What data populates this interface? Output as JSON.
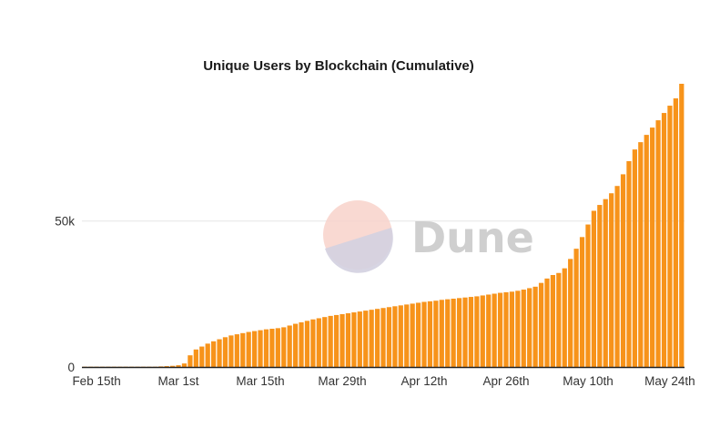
{
  "chart_data": {
    "type": "bar",
    "title": "Unique Users by Blockchain (Cumulative)",
    "xlabel": "",
    "ylabel": "",
    "x_start": "2022-02-13",
    "x_tick_labels": [
      "Feb 15th",
      "Mar 1st",
      "Mar 15th",
      "Mar 29th",
      "Apr 12th",
      "Apr 26th",
      "May 10th",
      "May 24th"
    ],
    "y_tick_labels": [
      "0",
      "50k"
    ],
    "y_tick_values": [
      0,
      50000
    ],
    "ylim": [
      0,
      97000
    ],
    "grid": "horizontal",
    "bar_color": "#f7931a",
    "values": [
      100,
      100,
      100,
      100,
      100,
      100,
      100,
      100,
      100,
      100,
      100,
      100,
      100,
      200,
      300,
      400,
      600,
      1200,
      4000,
      6000,
      7000,
      8000,
      8800,
      9500,
      10200,
      10800,
      11200,
      11600,
      12000,
      12300,
      12600,
      12900,
      13100,
      13300,
      13600,
      14200,
      14800,
      15300,
      15800,
      16300,
      16700,
      17100,
      17500,
      17800,
      18100,
      18400,
      18700,
      19000,
      19300,
      19600,
      19900,
      20200,
      20500,
      20800,
      21100,
      21400,
      21700,
      22000,
      22300,
      22500,
      22700,
      23000,
      23200,
      23400,
      23600,
      23800,
      24000,
      24200,
      24500,
      24800,
      25100,
      25400,
      25600,
      25800,
      26100,
      26500,
      27000,
      27500,
      28800,
      30300,
      31500,
      32200,
      33800,
      37000,
      40500,
      44500,
      48800,
      53500,
      55500,
      57500,
      59500,
      62000,
      66000,
      70500,
      74500,
      77000,
      79500,
      82000,
      84500,
      87000,
      89500,
      92000,
      97000
    ],
    "watermark": "Dune"
  }
}
